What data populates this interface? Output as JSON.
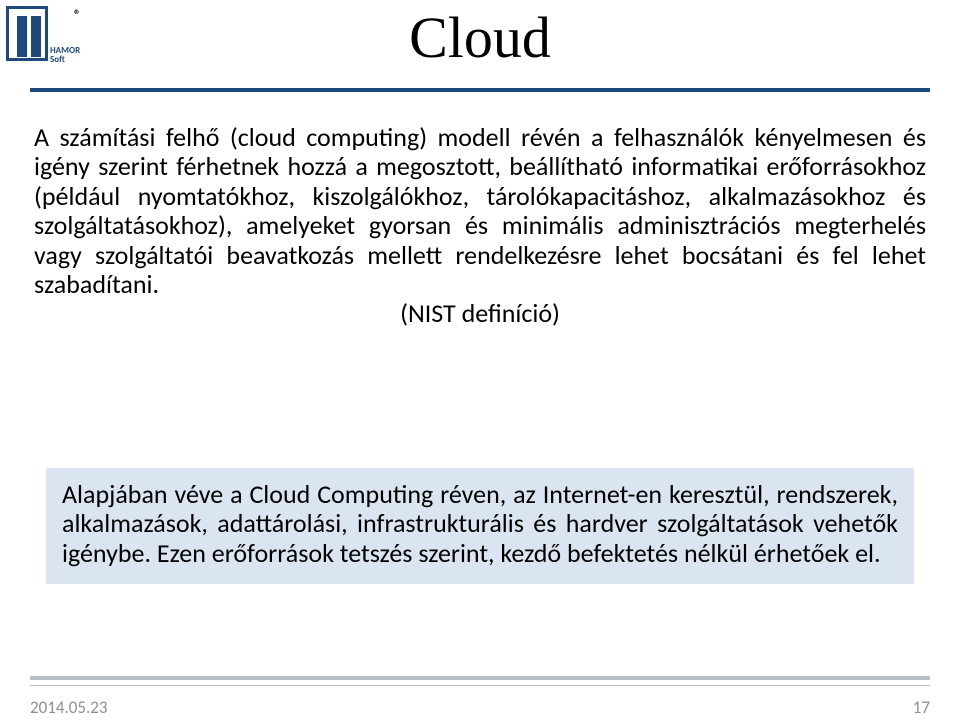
{
  "colors": {
    "brand": "#1f497d",
    "callout_bg": "#dbe5f1",
    "line": "#b8bfc9",
    "footer_text": "#8a8f99"
  },
  "logo": {
    "line1": "HAMOR",
    "line2": "Soft",
    "registered": "®"
  },
  "title": "Cloud",
  "body_text": "A számítási felhő (cloud computing) modell révén a felhasználók kényelmesen és igény szerint férhetnek hozzá a megosztott, beállítható informatikai erőforrásokhoz (például nyomtatókhoz, kiszolgálókhoz, tárolókapacitáshoz, alkalmazásokhoz és szolgáltatásokhoz), amelyeket gyorsan és minimális adminisztrációs megterhelés vagy szolgáltatói beavatkozás mellett rendelkezésre lehet bocsátani és fel lehet szabadítani.",
  "nist_label": "(NIST definíció)",
  "callout_text": "Alapjában véve  a Cloud Computing réven, az Internet-en keresztül, rendszerek, alkalmazások, adattárolási, infrastrukturális és hardver szolgáltatások vehetők igénybe. Ezen erőforrások tetszés szerint, kezdő befektetés nélkül érhetőek el.",
  "footer": {
    "date": "2014.05.23",
    "page": "17"
  }
}
